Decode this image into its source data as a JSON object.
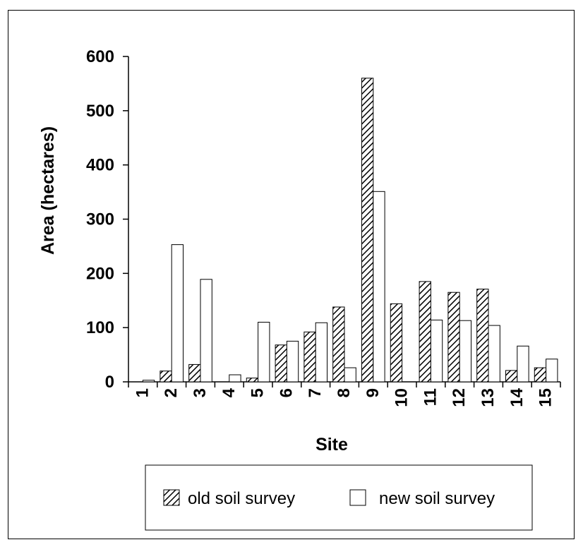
{
  "chart_data": {
    "type": "bar",
    "title": "",
    "xlabel": "Site",
    "ylabel": "Area  (hectares)",
    "ylim": [
      0,
      600
    ],
    "yticks": [
      "0",
      "100",
      "200",
      "300",
      "400",
      "500",
      "600"
    ],
    "categories": [
      "1",
      "2",
      "3",
      "4",
      "5",
      "6",
      "7",
      "8",
      "9",
      "10",
      "11",
      "12",
      "13",
      "14",
      "15"
    ],
    "series": [
      {
        "name": "old soil survey",
        "fill": "hatched",
        "values": [
          0,
          20,
          32,
          0,
          7,
          68,
          92,
          138,
          560,
          144,
          185,
          165,
          171,
          21,
          26
        ]
      },
      {
        "name": "new soil survey",
        "fill": "white",
        "values": [
          3,
          253,
          189,
          13,
          110,
          75,
          109,
          26,
          351,
          0,
          114,
          113,
          104,
          66,
          42
        ]
      }
    ],
    "grid": false,
    "legend_position": "bottom",
    "colors": {
      "axis": "#000000",
      "bar_stroke": "#000000",
      "background": "#ffffff"
    }
  }
}
